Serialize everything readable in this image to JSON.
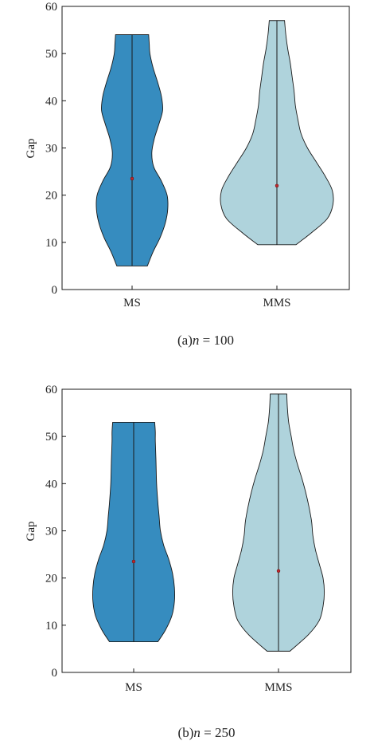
{
  "chart_data": [
    {
      "type": "violin",
      "caption_prefix": "(a)",
      "caption_var": "n",
      "caption_rest": " = 100",
      "ylabel": "Gap",
      "ylim": [
        0,
        60
      ],
      "yticks": [
        0,
        10,
        20,
        30,
        40,
        50,
        60
      ],
      "categories": [
        "MS",
        "MMS"
      ],
      "colors": [
        "#368cbf",
        "#afd3dc"
      ],
      "violins": [
        {
          "name": "MS",
          "min": 5,
          "max": 54,
          "median": 23.5,
          "profile": [
            [
              5,
              0.24
            ],
            [
              8,
              0.33
            ],
            [
              11,
              0.44
            ],
            [
              14,
              0.52
            ],
            [
              17,
              0.56
            ],
            [
              20,
              0.55
            ],
            [
              23,
              0.46
            ],
            [
              26,
              0.34
            ],
            [
              29,
              0.31
            ],
            [
              32,
              0.35
            ],
            [
              35,
              0.42
            ],
            [
              38,
              0.48
            ],
            [
              41,
              0.46
            ],
            [
              44,
              0.4
            ],
            [
              47,
              0.33
            ],
            [
              50,
              0.28
            ],
            [
              52,
              0.27
            ],
            [
              54,
              0.26
            ]
          ]
        },
        {
          "name": "MMS",
          "min": 9.5,
          "max": 57,
          "median": 22,
          "profile": [
            [
              9.5,
              0.3
            ],
            [
              12,
              0.54
            ],
            [
              15,
              0.79
            ],
            [
              18,
              0.88
            ],
            [
              21,
              0.87
            ],
            [
              24,
              0.76
            ],
            [
              27,
              0.62
            ],
            [
              30,
              0.48
            ],
            [
              33,
              0.38
            ],
            [
              36,
              0.33
            ],
            [
              39,
              0.29
            ],
            [
              42,
              0.27
            ],
            [
              45,
              0.24
            ],
            [
              48,
              0.21
            ],
            [
              51,
              0.17
            ],
            [
              54,
              0.14
            ],
            [
              57,
              0.12
            ]
          ]
        }
      ]
    },
    {
      "type": "violin",
      "caption_prefix": "(b)",
      "caption_var": "n",
      "caption_rest": " = 250",
      "ylabel": "Gap",
      "ylim": [
        0,
        60
      ],
      "yticks": [
        0,
        10,
        20,
        30,
        40,
        50,
        60
      ],
      "categories": [
        "MS",
        "MMS"
      ],
      "colors": [
        "#368cbf",
        "#afd3dc"
      ],
      "violins": [
        {
          "name": "MS",
          "min": 6.5,
          "max": 53,
          "median": 23.5,
          "profile": [
            [
              6.5,
              0.38
            ],
            [
              9,
              0.5
            ],
            [
              12,
              0.6
            ],
            [
              15,
              0.64
            ],
            [
              18,
              0.64
            ],
            [
              21,
              0.61
            ],
            [
              24,
              0.55
            ],
            [
              27,
              0.47
            ],
            [
              30,
              0.42
            ],
            [
              33,
              0.4
            ],
            [
              36,
              0.38
            ],
            [
              40,
              0.36
            ],
            [
              45,
              0.35
            ],
            [
              49,
              0.34
            ],
            [
              51,
              0.34
            ],
            [
              53,
              0.33
            ]
          ]
        },
        {
          "name": "MMS",
          "min": 4.5,
          "max": 59,
          "median": 21.5,
          "profile": [
            [
              4.5,
              0.18
            ],
            [
              8,
              0.47
            ],
            [
              11,
              0.64
            ],
            [
              14,
              0.7
            ],
            [
              17,
              0.72
            ],
            [
              20,
              0.7
            ],
            [
              23,
              0.64
            ],
            [
              26,
              0.58
            ],
            [
              29,
              0.54
            ],
            [
              32,
              0.52
            ],
            [
              35,
              0.48
            ],
            [
              38,
              0.43
            ],
            [
              41,
              0.37
            ],
            [
              44,
              0.3
            ],
            [
              47,
              0.24
            ],
            [
              50,
              0.2
            ],
            [
              53,
              0.16
            ],
            [
              56,
              0.14
            ],
            [
              59,
              0.13
            ]
          ]
        }
      ]
    }
  ]
}
